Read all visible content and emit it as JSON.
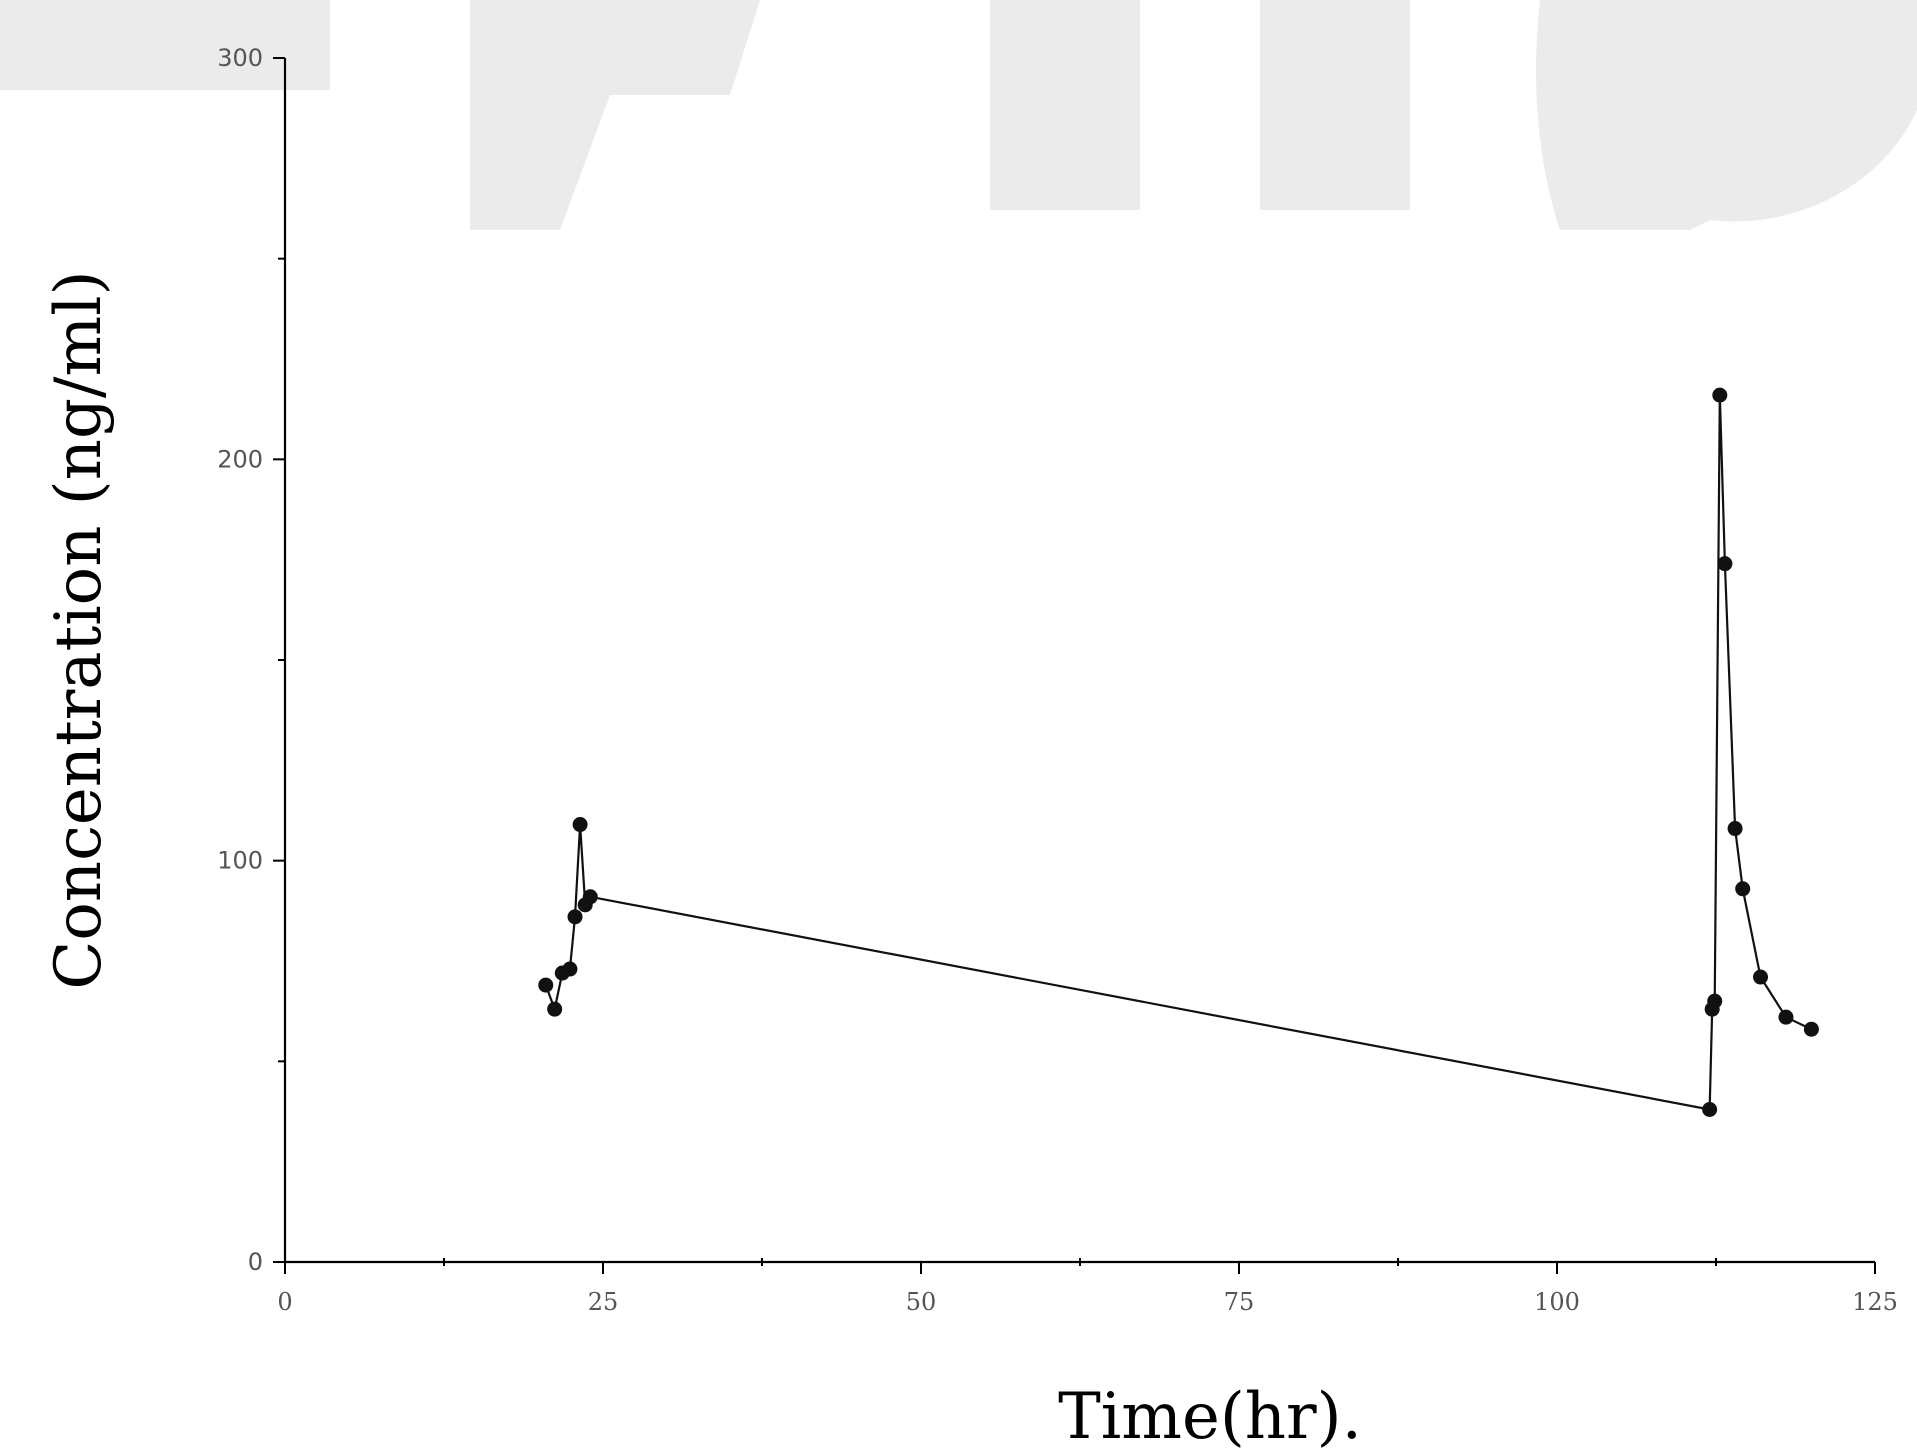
{
  "chart_data": {
    "type": "line",
    "title": "",
    "xlabel": "Time(hr).",
    "ylabel": "Concentration (ng/ml)",
    "xlim": [
      0,
      125
    ],
    "ylim": [
      0,
      300
    ],
    "x_ticks": [
      0,
      25,
      50,
      75,
      100,
      125
    ],
    "x_tick_labels": [
      "0",
      "25",
      "50",
      "75",
      "100",
      "125"
    ],
    "y_ticks": [
      0,
      100,
      200,
      300
    ],
    "y_tick_labels": [
      "0",
      "100",
      "200",
      "300"
    ],
    "grid": false,
    "legend": "none",
    "series": [
      {
        "color": "#111111",
        "marker": "filled-circle",
        "points": [
          {
            "x": 20.5,
            "y": 69
          },
          {
            "x": 21.2,
            "y": 63
          },
          {
            "x": 21.8,
            "y": 72
          },
          {
            "x": 22.4,
            "y": 73
          },
          {
            "x": 22.8,
            "y": 86
          },
          {
            "x": 23.2,
            "y": 109
          },
          {
            "x": 23.6,
            "y": 89
          },
          {
            "x": 24.0,
            "y": 91
          },
          {
            "x": 112.0,
            "y": 38
          },
          {
            "x": 112.2,
            "y": 63
          },
          {
            "x": 112.4,
            "y": 65
          },
          {
            "x": 112.8,
            "y": 216
          },
          {
            "x": 113.2,
            "y": 174
          },
          {
            "x": 114.0,
            "y": 108
          },
          {
            "x": 114.6,
            "y": 93
          },
          {
            "x": 116.0,
            "y": 71
          },
          {
            "x": 118.0,
            "y": 61
          },
          {
            "x": 120.0,
            "y": 58
          }
        ]
      }
    ]
  },
  "watermark": {
    "color": "#ebebeb"
  }
}
